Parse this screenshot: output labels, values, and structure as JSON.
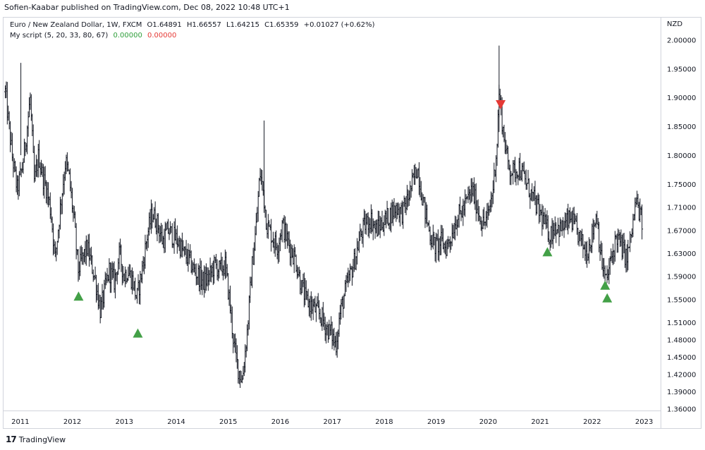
{
  "publisher_line": "Sofien-Kaabar published on TradingView.com, Dec 08, 2022 10:48 UTC+1",
  "legend": {
    "symbol": "Euro / New Zealand Dollar, 1W, FXCM",
    "open": "O1.64891",
    "high": "H1.66557",
    "low": "L1.64215",
    "close": "C1.65359",
    "change": "+0.01027 (+0.62%)",
    "script_name": "My script (5, 20, 33, 80, 67)",
    "script_val_1": "0.00000",
    "script_val_2": "0.00000"
  },
  "currency_label": "NZD",
  "footer": {
    "logo_glyph": "17",
    "brand": "TradingView"
  },
  "colors": {
    "bars": "#131722",
    "up_signal": "#43a047",
    "down_signal": "#e53935",
    "grid_border": "#d1d4dc"
  },
  "chart_data": {
    "type": "bar",
    "title": "Euro / New Zealand Dollar, 1W, FXCM",
    "xlabel": "",
    "ylabel": "",
    "x_ticks": [
      "2011",
      "2012",
      "2013",
      "2014",
      "2015",
      "2016",
      "2017",
      "2018",
      "2019",
      "2020",
      "2021",
      "2022",
      "2023"
    ],
    "y_ticks": [
      "2.00000",
      "1.95000",
      "1.90000",
      "1.85000",
      "1.80000",
      "1.75000",
      "1.71000",
      "1.67000",
      "1.63000",
      "1.59000",
      "1.55000",
      "1.51000",
      "1.48000",
      "1.45000",
      "1.42000",
      "1.39000",
      "1.36000"
    ],
    "ylim": [
      1.345,
      2.025
    ],
    "xlim": [
      2010.7,
      2023.3
    ],
    "series": [
      {
        "type": "ohlc-weekly",
        "anchors": [
          [
            2010.72,
            1.91
          ],
          [
            2010.85,
            1.8
          ],
          [
            2010.95,
            1.74
          ],
          [
            2011.05,
            1.78
          ],
          [
            2011.12,
            1.83
          ],
          [
            2011.2,
            1.9
          ],
          [
            2011.28,
            1.75
          ],
          [
            2011.36,
            1.8
          ],
          [
            2011.45,
            1.76
          ],
          [
            2011.52,
            1.74
          ],
          [
            2011.6,
            1.7
          ],
          [
            2011.68,
            1.62
          ],
          [
            2011.78,
            1.71
          ],
          [
            2011.88,
            1.79
          ],
          [
            2011.95,
            1.76
          ],
          [
            2012.05,
            1.68
          ],
          [
            2012.12,
            1.6
          ],
          [
            2012.2,
            1.62
          ],
          [
            2012.3,
            1.64
          ],
          [
            2012.38,
            1.61
          ],
          [
            2012.46,
            1.58
          ],
          [
            2012.55,
            1.53
          ],
          [
            2012.62,
            1.56
          ],
          [
            2012.72,
            1.6
          ],
          [
            2012.82,
            1.58
          ],
          [
            2012.92,
            1.63
          ],
          [
            2013.0,
            1.59
          ],
          [
            2013.08,
            1.6
          ],
          [
            2013.18,
            1.58
          ],
          [
            2013.25,
            1.55
          ],
          [
            2013.35,
            1.6
          ],
          [
            2013.45,
            1.66
          ],
          [
            2013.55,
            1.7
          ],
          [
            2013.65,
            1.68
          ],
          [
            2013.75,
            1.65
          ],
          [
            2013.85,
            1.67
          ],
          [
            2013.95,
            1.66
          ],
          [
            2014.05,
            1.65
          ],
          [
            2014.15,
            1.63
          ],
          [
            2014.25,
            1.62
          ],
          [
            2014.35,
            1.6
          ],
          [
            2014.45,
            1.59
          ],
          [
            2014.55,
            1.58
          ],
          [
            2014.65,
            1.59
          ],
          [
            2014.75,
            1.61
          ],
          [
            2014.85,
            1.6
          ],
          [
            2014.95,
            1.61
          ],
          [
            2015.03,
            1.55
          ],
          [
            2015.12,
            1.47
          ],
          [
            2015.2,
            1.43
          ],
          [
            2015.28,
            1.41
          ],
          [
            2015.38,
            1.5
          ],
          [
            2015.46,
            1.6
          ],
          [
            2015.55,
            1.68
          ],
          [
            2015.62,
            1.77
          ],
          [
            2015.68,
            1.74
          ],
          [
            2015.75,
            1.68
          ],
          [
            2015.85,
            1.66
          ],
          [
            2015.95,
            1.64
          ],
          [
            2016.05,
            1.68
          ],
          [
            2016.12,
            1.66
          ],
          [
            2016.2,
            1.64
          ],
          [
            2016.3,
            1.62
          ],
          [
            2016.4,
            1.58
          ],
          [
            2016.5,
            1.55
          ],
          [
            2016.6,
            1.54
          ],
          [
            2016.7,
            1.53
          ],
          [
            2016.8,
            1.52
          ],
          [
            2016.9,
            1.5
          ],
          [
            2017.0,
            1.49
          ],
          [
            2017.08,
            1.47
          ],
          [
            2017.15,
            1.52
          ],
          [
            2017.25,
            1.56
          ],
          [
            2017.35,
            1.59
          ],
          [
            2017.45,
            1.62
          ],
          [
            2017.55,
            1.66
          ],
          [
            2017.65,
            1.68
          ],
          [
            2017.75,
            1.69
          ],
          [
            2017.85,
            1.67
          ],
          [
            2017.95,
            1.68
          ],
          [
            2018.05,
            1.69
          ],
          [
            2018.15,
            1.7
          ],
          [
            2018.25,
            1.71
          ],
          [
            2018.35,
            1.7
          ],
          [
            2018.45,
            1.72
          ],
          [
            2018.55,
            1.75
          ],
          [
            2018.65,
            1.78
          ],
          [
            2018.72,
            1.74
          ],
          [
            2018.8,
            1.7
          ],
          [
            2018.9,
            1.66
          ],
          [
            2019.0,
            1.64
          ],
          [
            2019.1,
            1.65
          ],
          [
            2019.2,
            1.64
          ],
          [
            2019.3,
            1.66
          ],
          [
            2019.4,
            1.69
          ],
          [
            2019.5,
            1.7
          ],
          [
            2019.6,
            1.72
          ],
          [
            2019.7,
            1.74
          ],
          [
            2019.8,
            1.71
          ],
          [
            2019.9,
            1.68
          ],
          [
            2020.0,
            1.69
          ],
          [
            2020.1,
            1.74
          ],
          [
            2020.18,
            1.82
          ],
          [
            2020.22,
            1.91
          ],
          [
            2020.3,
            1.84
          ],
          [
            2020.4,
            1.78
          ],
          [
            2020.5,
            1.77
          ],
          [
            2020.6,
            1.78
          ],
          [
            2020.7,
            1.76
          ],
          [
            2020.8,
            1.74
          ],
          [
            2020.9,
            1.72
          ],
          [
            2021.0,
            1.7
          ],
          [
            2021.1,
            1.68
          ],
          [
            2021.2,
            1.66
          ],
          [
            2021.3,
            1.68
          ],
          [
            2021.4,
            1.67
          ],
          [
            2021.5,
            1.68
          ],
          [
            2021.6,
            1.69
          ],
          [
            2021.7,
            1.67
          ],
          [
            2021.8,
            1.65
          ],
          [
            2021.9,
            1.63
          ],
          [
            2022.0,
            1.66
          ],
          [
            2022.1,
            1.7
          ],
          [
            2022.18,
            1.62
          ],
          [
            2022.28,
            1.58
          ],
          [
            2022.38,
            1.62
          ],
          [
            2022.48,
            1.66
          ],
          [
            2022.58,
            1.64
          ],
          [
            2022.68,
            1.62
          ],
          [
            2022.78,
            1.67
          ],
          [
            2022.85,
            1.72
          ],
          [
            2022.92,
            1.7
          ],
          [
            2022.98,
            1.68
          ]
        ]
      }
    ],
    "signals": [
      {
        "kind": "up",
        "x": 2012.13,
        "y": 1.555
      },
      {
        "kind": "up",
        "x": 2013.27,
        "y": 1.491
      },
      {
        "kind": "down",
        "x": 2020.25,
        "y": 1.888
      },
      {
        "kind": "up",
        "x": 2021.15,
        "y": 1.632
      },
      {
        "kind": "up",
        "x": 2022.26,
        "y": 1.574
      },
      {
        "kind": "up",
        "x": 2022.3,
        "y": 1.552
      }
    ],
    "grid": false,
    "legend_position": "top-left"
  }
}
